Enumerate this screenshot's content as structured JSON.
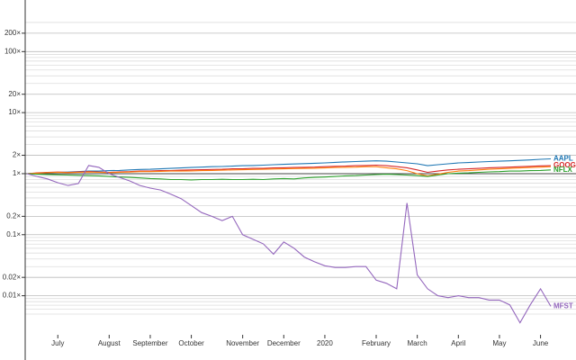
{
  "chart_data": {
    "type": "line",
    "log_scale": true,
    "grid": true,
    "baseline": 1,
    "categories": [
      null,
      null,
      null,
      "July",
      null,
      null,
      null,
      null,
      "August",
      null,
      null,
      null,
      "September",
      null,
      null,
      null,
      "October",
      null,
      null,
      null,
      null,
      "November",
      null,
      null,
      null,
      "December",
      null,
      null,
      null,
      "2020",
      null,
      null,
      null,
      null,
      "February",
      null,
      null,
      null,
      "March",
      null,
      null,
      null,
      "April",
      null,
      null,
      null,
      "May",
      null,
      null,
      null,
      "June",
      null
    ],
    "ylim": [
      0.002,
      700
    ],
    "yticks": [
      {
        "value": 0.01,
        "label": "0.01×"
      },
      {
        "value": 0.02,
        "label": "0.02×"
      },
      {
        "value": 0.1,
        "label": "0.1×"
      },
      {
        "value": 0.2,
        "label": "0.2×"
      },
      {
        "value": 1,
        "label": "1×"
      },
      {
        "value": 2,
        "label": "2×"
      },
      {
        "value": 10,
        "label": "10×"
      },
      {
        "value": 20,
        "label": "20×"
      },
      {
        "value": 100,
        "label": "100×"
      },
      {
        "value": 200,
        "label": "200×"
      }
    ],
    "minor_yticks": [
      0.005,
      0.006,
      0.007,
      0.008,
      0.009,
      0.03,
      0.04,
      0.05,
      0.06,
      0.07,
      0.08,
      0.09,
      0.3,
      0.4,
      0.5,
      0.6,
      0.7,
      0.8,
      0.9,
      3,
      4,
      5,
      6,
      7,
      8,
      9,
      30,
      40,
      50,
      60,
      70,
      80,
      90,
      300
    ],
    "series": [
      {
        "name": "AAPL",
        "color": "#1f77b4",
        "values": [
          1.0,
          1.02,
          1.04,
          1.05,
          1.06,
          1.08,
          1.1,
          1.1,
          1.12,
          1.13,
          1.15,
          1.17,
          1.18,
          1.2,
          1.22,
          1.24,
          1.26,
          1.28,
          1.3,
          1.31,
          1.33,
          1.35,
          1.36,
          1.38,
          1.4,
          1.42,
          1.44,
          1.46,
          1.48,
          1.5,
          1.53,
          1.56,
          1.58,
          1.6,
          1.62,
          1.6,
          1.55,
          1.5,
          1.45,
          1.35,
          1.4,
          1.45,
          1.5,
          1.52,
          1.55,
          1.58,
          1.6,
          1.62,
          1.65,
          1.68,
          1.72,
          1.75
        ]
      },
      {
        "name": "GOOG",
        "color": "#d62728",
        "values": [
          1.0,
          1.03,
          1.05,
          1.06,
          1.05,
          1.07,
          1.08,
          1.06,
          1.05,
          1.07,
          1.08,
          1.1,
          1.1,
          1.12,
          1.12,
          1.14,
          1.15,
          1.16,
          1.17,
          1.18,
          1.2,
          1.2,
          1.22,
          1.22,
          1.24,
          1.25,
          1.26,
          1.27,
          1.28,
          1.3,
          1.32,
          1.33,
          1.35,
          1.36,
          1.38,
          1.35,
          1.3,
          1.25,
          1.15,
          1.05,
          1.1,
          1.15,
          1.18,
          1.2,
          1.22,
          1.25,
          1.26,
          1.28,
          1.3,
          1.32,
          1.34,
          1.35
        ]
      },
      {
        "color": "#ff7f0e",
        "values": [
          1.0,
          1.02,
          1.04,
          1.05,
          1.04,
          1.05,
          1.06,
          1.05,
          1.04,
          1.05,
          1.06,
          1.08,
          1.08,
          1.09,
          1.1,
          1.1,
          1.11,
          1.12,
          1.13,
          1.14,
          1.15,
          1.16,
          1.17,
          1.18,
          1.19,
          1.2,
          1.21,
          1.22,
          1.23,
          1.24,
          1.26,
          1.27,
          1.28,
          1.3,
          1.3,
          1.25,
          1.2,
          1.12,
          1.0,
          0.92,
          0.98,
          1.05,
          1.1,
          1.12,
          1.15,
          1.18,
          1.2,
          1.22,
          1.24,
          1.26,
          1.28,
          1.3
        ]
      },
      {
        "name": "NFLX",
        "color": "#2ca02c",
        "values": [
          1.0,
          0.98,
          0.97,
          0.96,
          0.95,
          0.94,
          0.93,
          0.92,
          0.9,
          0.88,
          0.87,
          0.85,
          0.83,
          0.82,
          0.8,
          0.8,
          0.79,
          0.8,
          0.8,
          0.81,
          0.8,
          0.8,
          0.81,
          0.8,
          0.82,
          0.83,
          0.82,
          0.85,
          0.87,
          0.88,
          0.9,
          0.92,
          0.93,
          0.95,
          0.97,
          0.98,
          0.97,
          0.95,
          0.93,
          0.9,
          0.95,
          1.0,
          1.02,
          1.03,
          1.05,
          1.07,
          1.08,
          1.1,
          1.1,
          1.12,
          1.13,
          1.15
        ]
      },
      {
        "name": "MFST",
        "color": "#9467bd",
        "values": [
          1.0,
          0.9,
          0.82,
          0.71,
          0.64,
          0.69,
          1.36,
          1.27,
          1.0,
          0.87,
          0.76,
          0.64,
          0.58,
          0.54,
          0.46,
          0.39,
          0.3,
          0.23,
          0.2,
          0.17,
          0.2,
          0.1,
          0.084,
          0.071,
          0.048,
          0.076,
          0.06,
          0.043,
          0.036,
          0.031,
          0.029,
          0.029,
          0.03,
          0.03,
          0.018,
          0.016,
          0.013,
          0.33,
          0.022,
          0.013,
          0.01,
          0.0093,
          0.01,
          0.0093,
          0.0093,
          0.0085,
          0.0085,
          0.0071,
          0.0036,
          0.0071,
          0.013,
          0.0067
        ]
      }
    ]
  }
}
